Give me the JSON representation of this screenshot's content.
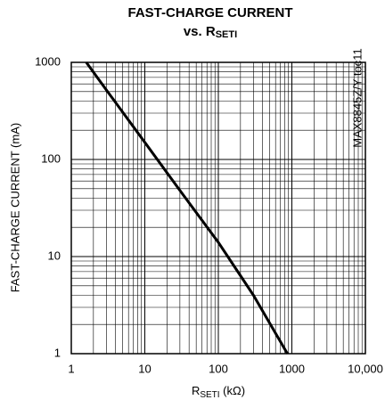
{
  "chart_data": {
    "type": "line",
    "title": "FAST-CHARGE CURRENT",
    "subtitle": [
      "vs. R",
      "SETI"
    ],
    "xlabel": [
      "R",
      "SETI",
      " (kΩ)"
    ],
    "ylabel": "FAST-CHARGE CURRENT (mA)",
    "annotation": "MAX8845Z/Y toc11",
    "xlog": true,
    "ylog": true,
    "grid": true,
    "xlim": [
      1,
      10000
    ],
    "ylim": [
      1,
      1000
    ],
    "xticks": [
      1,
      10,
      100,
      1000,
      {
        "value": 10000,
        "label": "10,000"
      }
    ],
    "yticks": [
      1,
      10,
      100,
      1000
    ],
    "xminorticks": [
      2,
      3,
      4,
      5,
      6,
      7,
      8,
      9,
      20,
      30,
      40,
      50,
      60,
      70,
      80,
      90,
      200,
      300,
      400,
      500,
      600,
      700,
      800,
      900,
      2000,
      3000,
      4000,
      5000,
      6000,
      7000,
      8000,
      9000
    ],
    "yminorticks": [
      2,
      3,
      4,
      5,
      6,
      7,
      8,
      9,
      20,
      30,
      40,
      50,
      60,
      70,
      80,
      90,
      200,
      300,
      400,
      500,
      600,
      700,
      800,
      900
    ],
    "x": [
      1.6,
      3,
      10,
      30,
      100,
      300,
      870
    ],
    "series": [
      {
        "color": "#000000",
        "values": [
          1000,
          520,
          150,
          48,
          14,
          4,
          1
        ]
      }
    ]
  }
}
